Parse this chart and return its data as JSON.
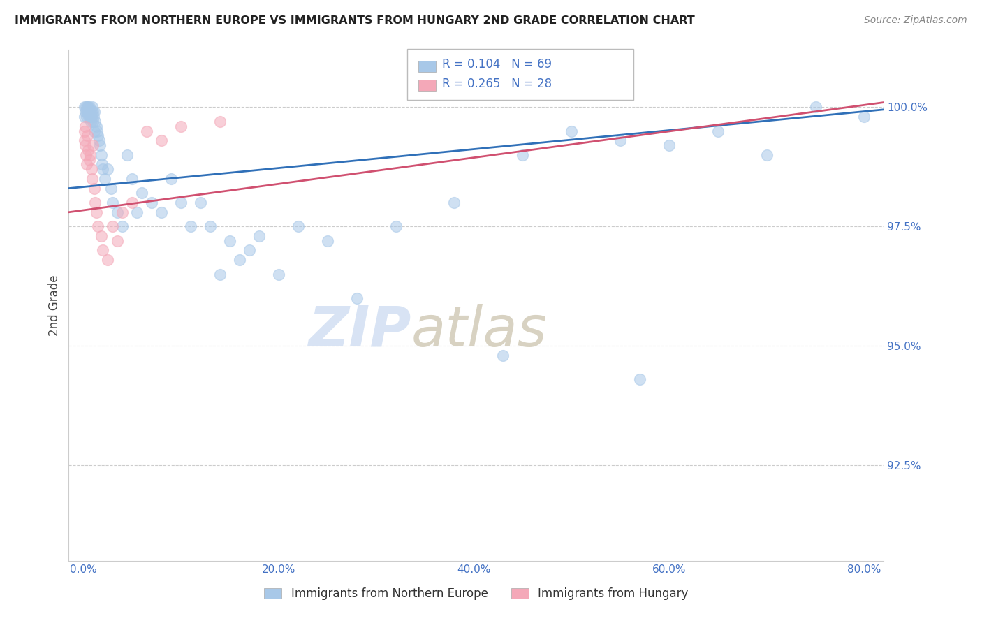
{
  "title": "IMMIGRANTS FROM NORTHERN EUROPE VS IMMIGRANTS FROM HUNGARY 2ND GRADE CORRELATION CHART",
  "source": "Source: ZipAtlas.com",
  "ylabel": "2nd Grade",
  "xlabel_ticks": [
    "0.0%",
    "20.0%",
    "40.0%",
    "60.0%",
    "80.0%"
  ],
  "xlabel_vals": [
    0.0,
    20.0,
    40.0,
    60.0,
    80.0
  ],
  "ylabel_ticks": [
    "100.0%",
    "97.5%",
    "95.0%",
    "92.5%"
  ],
  "ylabel_vals": [
    100.0,
    97.5,
    95.0,
    92.5
  ],
  "ylim": [
    90.5,
    101.2
  ],
  "xlim": [
    -1.5,
    82.0
  ],
  "blue_R": 0.104,
  "blue_N": 69,
  "pink_R": 0.265,
  "pink_N": 28,
  "legend_label_blue": "Immigrants from Northern Europe",
  "legend_label_pink": "Immigrants from Hungary",
  "blue_color": "#a8c8e8",
  "pink_color": "#f4a8b8",
  "blue_line_color": "#3070b8",
  "pink_line_color": "#d05070",
  "tick_color": "#4472c4",
  "blue_scatter_x": [
    0.1,
    0.15,
    0.2,
    0.25,
    0.3,
    0.35,
    0.4,
    0.45,
    0.5,
    0.55,
    0.6,
    0.65,
    0.7,
    0.75,
    0.8,
    0.85,
    0.9,
    0.95,
    1.0,
    1.05,
    1.1,
    1.15,
    1.2,
    1.3,
    1.4,
    1.5,
    1.6,
    1.7,
    1.8,
    1.9,
    2.0,
    2.2,
    2.5,
    2.8,
    3.0,
    3.5,
    4.0,
    4.5,
    5.0,
    5.5,
    6.0,
    7.0,
    8.0,
    9.0,
    10.0,
    11.0,
    12.0,
    13.0,
    14.0,
    15.0,
    16.0,
    17.0,
    18.0,
    20.0,
    22.0,
    25.0,
    28.0,
    32.0,
    38.0,
    45.0,
    50.0,
    55.0,
    60.0,
    65.0,
    70.0,
    75.0,
    80.0,
    43.0,
    57.0
  ],
  "blue_scatter_y": [
    99.8,
    100.0,
    99.9,
    100.0,
    99.8,
    99.9,
    100.0,
    99.9,
    100.0,
    99.8,
    99.9,
    100.0,
    99.8,
    99.7,
    99.9,
    99.8,
    100.0,
    99.9,
    99.7,
    99.8,
    99.9,
    99.5,
    99.7,
    99.6,
    99.5,
    99.4,
    99.3,
    99.2,
    99.0,
    98.8,
    98.7,
    98.5,
    98.7,
    98.3,
    98.0,
    97.8,
    97.5,
    99.0,
    98.5,
    97.8,
    98.2,
    98.0,
    97.8,
    98.5,
    98.0,
    97.5,
    98.0,
    97.5,
    96.5,
    97.2,
    96.8,
    97.0,
    97.3,
    96.5,
    97.5,
    97.2,
    96.0,
    97.5,
    98.0,
    99.0,
    99.5,
    99.3,
    99.2,
    99.5,
    99.0,
    100.0,
    99.8,
    94.8,
    94.3
  ],
  "pink_scatter_x": [
    0.08,
    0.12,
    0.18,
    0.22,
    0.28,
    0.35,
    0.42,
    0.5,
    0.6,
    0.7,
    0.8,
    0.9,
    1.0,
    1.1,
    1.2,
    1.3,
    1.5,
    1.8,
    2.0,
    2.5,
    3.0,
    3.5,
    4.0,
    5.0,
    6.5,
    8.0,
    10.0,
    14.0
  ],
  "pink_scatter_y": [
    99.5,
    99.3,
    99.6,
    99.2,
    99.0,
    98.8,
    99.4,
    99.1,
    98.9,
    99.0,
    98.7,
    98.5,
    99.2,
    98.3,
    98.0,
    97.8,
    97.5,
    97.3,
    97.0,
    96.8,
    97.5,
    97.2,
    97.8,
    98.0,
    99.5,
    99.3,
    99.6,
    99.7
  ],
  "blue_trendline_x0": -1.5,
  "blue_trendline_x1": 82.0,
  "blue_trendline_y0": 98.3,
  "blue_trendline_y1": 99.95,
  "pink_trendline_x0": -1.5,
  "pink_trendline_x1": 82.0,
  "pink_trendline_y0": 97.8,
  "pink_trendline_y1": 100.1,
  "watermark_zip_color": "#c8d8f0",
  "watermark_atlas_color": "#c8c0a8",
  "grid_color": "#cccccc",
  "background_color": "#ffffff"
}
